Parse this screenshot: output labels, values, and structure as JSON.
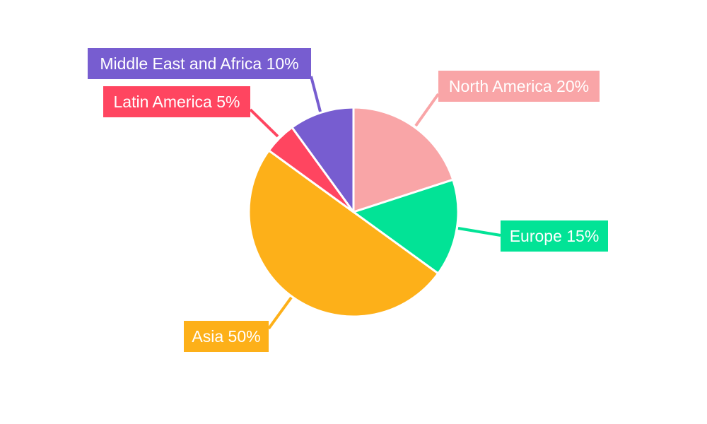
{
  "chart_data": {
    "type": "pie",
    "categories": [
      "North America",
      "Europe",
      "Asia",
      "Latin America",
      "Middle East and Africa"
    ],
    "values": [
      20,
      15,
      50,
      5,
      10
    ],
    "labels": [
      "North America 20%",
      "Europe 15%",
      "Asia 50%",
      "Latin America 5%",
      "Middle East and Africa 10%"
    ],
    "colors": [
      "#F9A5A7",
      "#02E396",
      "#FDB019",
      "#FF4560",
      "#775DD0"
    ],
    "start_angle": "top, clockwise",
    "legend": "none"
  }
}
